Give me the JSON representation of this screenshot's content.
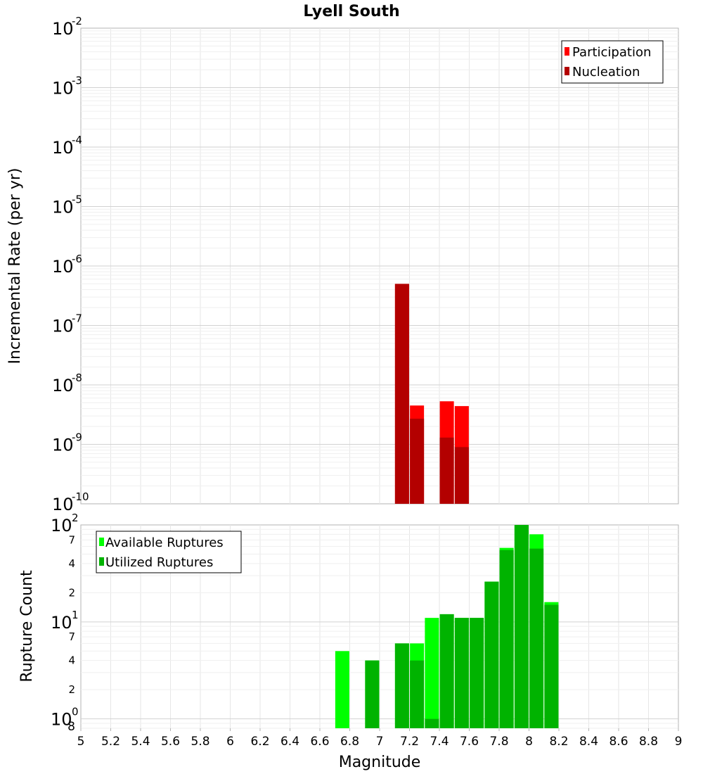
{
  "chart_data": [
    {
      "type": "bar",
      "title": "Lyell South",
      "ylabel": "Incremental Rate (per yr)",
      "y_scale": "log",
      "ylim": [
        1e-10,
        0.01
      ],
      "y_ticks": [
        {
          "base": "10",
          "exp": "-2"
        },
        {
          "base": "10",
          "exp": "-3"
        },
        {
          "base": "10",
          "exp": "-4"
        },
        {
          "base": "10",
          "exp": "-5"
        },
        {
          "base": "10",
          "exp": "-6"
        },
        {
          "base": "10",
          "exp": "-7"
        },
        {
          "base": "10",
          "exp": "-8"
        },
        {
          "base": "10",
          "exp": "-9"
        },
        {
          "base": "10",
          "exp": "-10"
        }
      ],
      "grid": true,
      "legend_position": "top-right",
      "series": [
        {
          "name": "Participation",
          "color": "#ff0000",
          "x": [
            7.15,
            7.25,
            7.45,
            7.55
          ],
          "values": [
            5e-07,
            4.5e-09,
            5.3e-09,
            4.4e-09
          ]
        },
        {
          "name": "Nucleation",
          "color": "#b30000",
          "x": [
            7.15,
            7.25,
            7.45,
            7.55
          ],
          "values": [
            5e-07,
            2.7e-09,
            1.3e-09,
            9e-10
          ]
        }
      ]
    },
    {
      "type": "bar",
      "xlabel": "Magnitude",
      "ylabel": "Rupture Count",
      "y_scale": "log",
      "ylim": [
        0.8,
        100
      ],
      "xlim": [
        5,
        9
      ],
      "x_ticks": [
        "5",
        "5.2",
        "5.4",
        "5.6",
        "5.8",
        "6",
        "6.2",
        "6.4",
        "6.6",
        "6.8",
        "7",
        "7.2",
        "7.4",
        "7.6",
        "7.8",
        "8",
        "8.2",
        "8.4",
        "8.6",
        "8.8",
        "9"
      ],
      "y_major_ticks": [
        {
          "base": "10",
          "exp": "2"
        },
        {
          "base": "10",
          "exp": "1"
        },
        {
          "base": "10",
          "exp": "0"
        }
      ],
      "y_minor_ticks": [
        "7",
        "4",
        "2",
        "7",
        "4",
        "2",
        "8"
      ],
      "grid": true,
      "legend_position": "top-left",
      "series": [
        {
          "name": "Available Ruptures",
          "color": "#00ff00",
          "x": [
            6.75,
            6.95,
            7.15,
            7.25,
            7.35,
            7.45,
            7.55,
            7.65,
            7.75,
            7.85,
            7.95,
            8.05,
            8.15
          ],
          "values": [
            5,
            4,
            6,
            6,
            11,
            12,
            11,
            11,
            26,
            58,
            100,
            80,
            16
          ]
        },
        {
          "name": "Utilized Ruptures",
          "color": "#00b300",
          "x": [
            6.75,
            6.95,
            7.15,
            7.25,
            7.35,
            7.45,
            7.55,
            7.65,
            7.75,
            7.85,
            7.95,
            8.05,
            8.15
          ],
          "values": [
            0,
            4,
            6,
            4,
            1,
            12,
            11,
            11,
            26,
            55,
            100,
            57,
            15
          ]
        }
      ]
    }
  ]
}
